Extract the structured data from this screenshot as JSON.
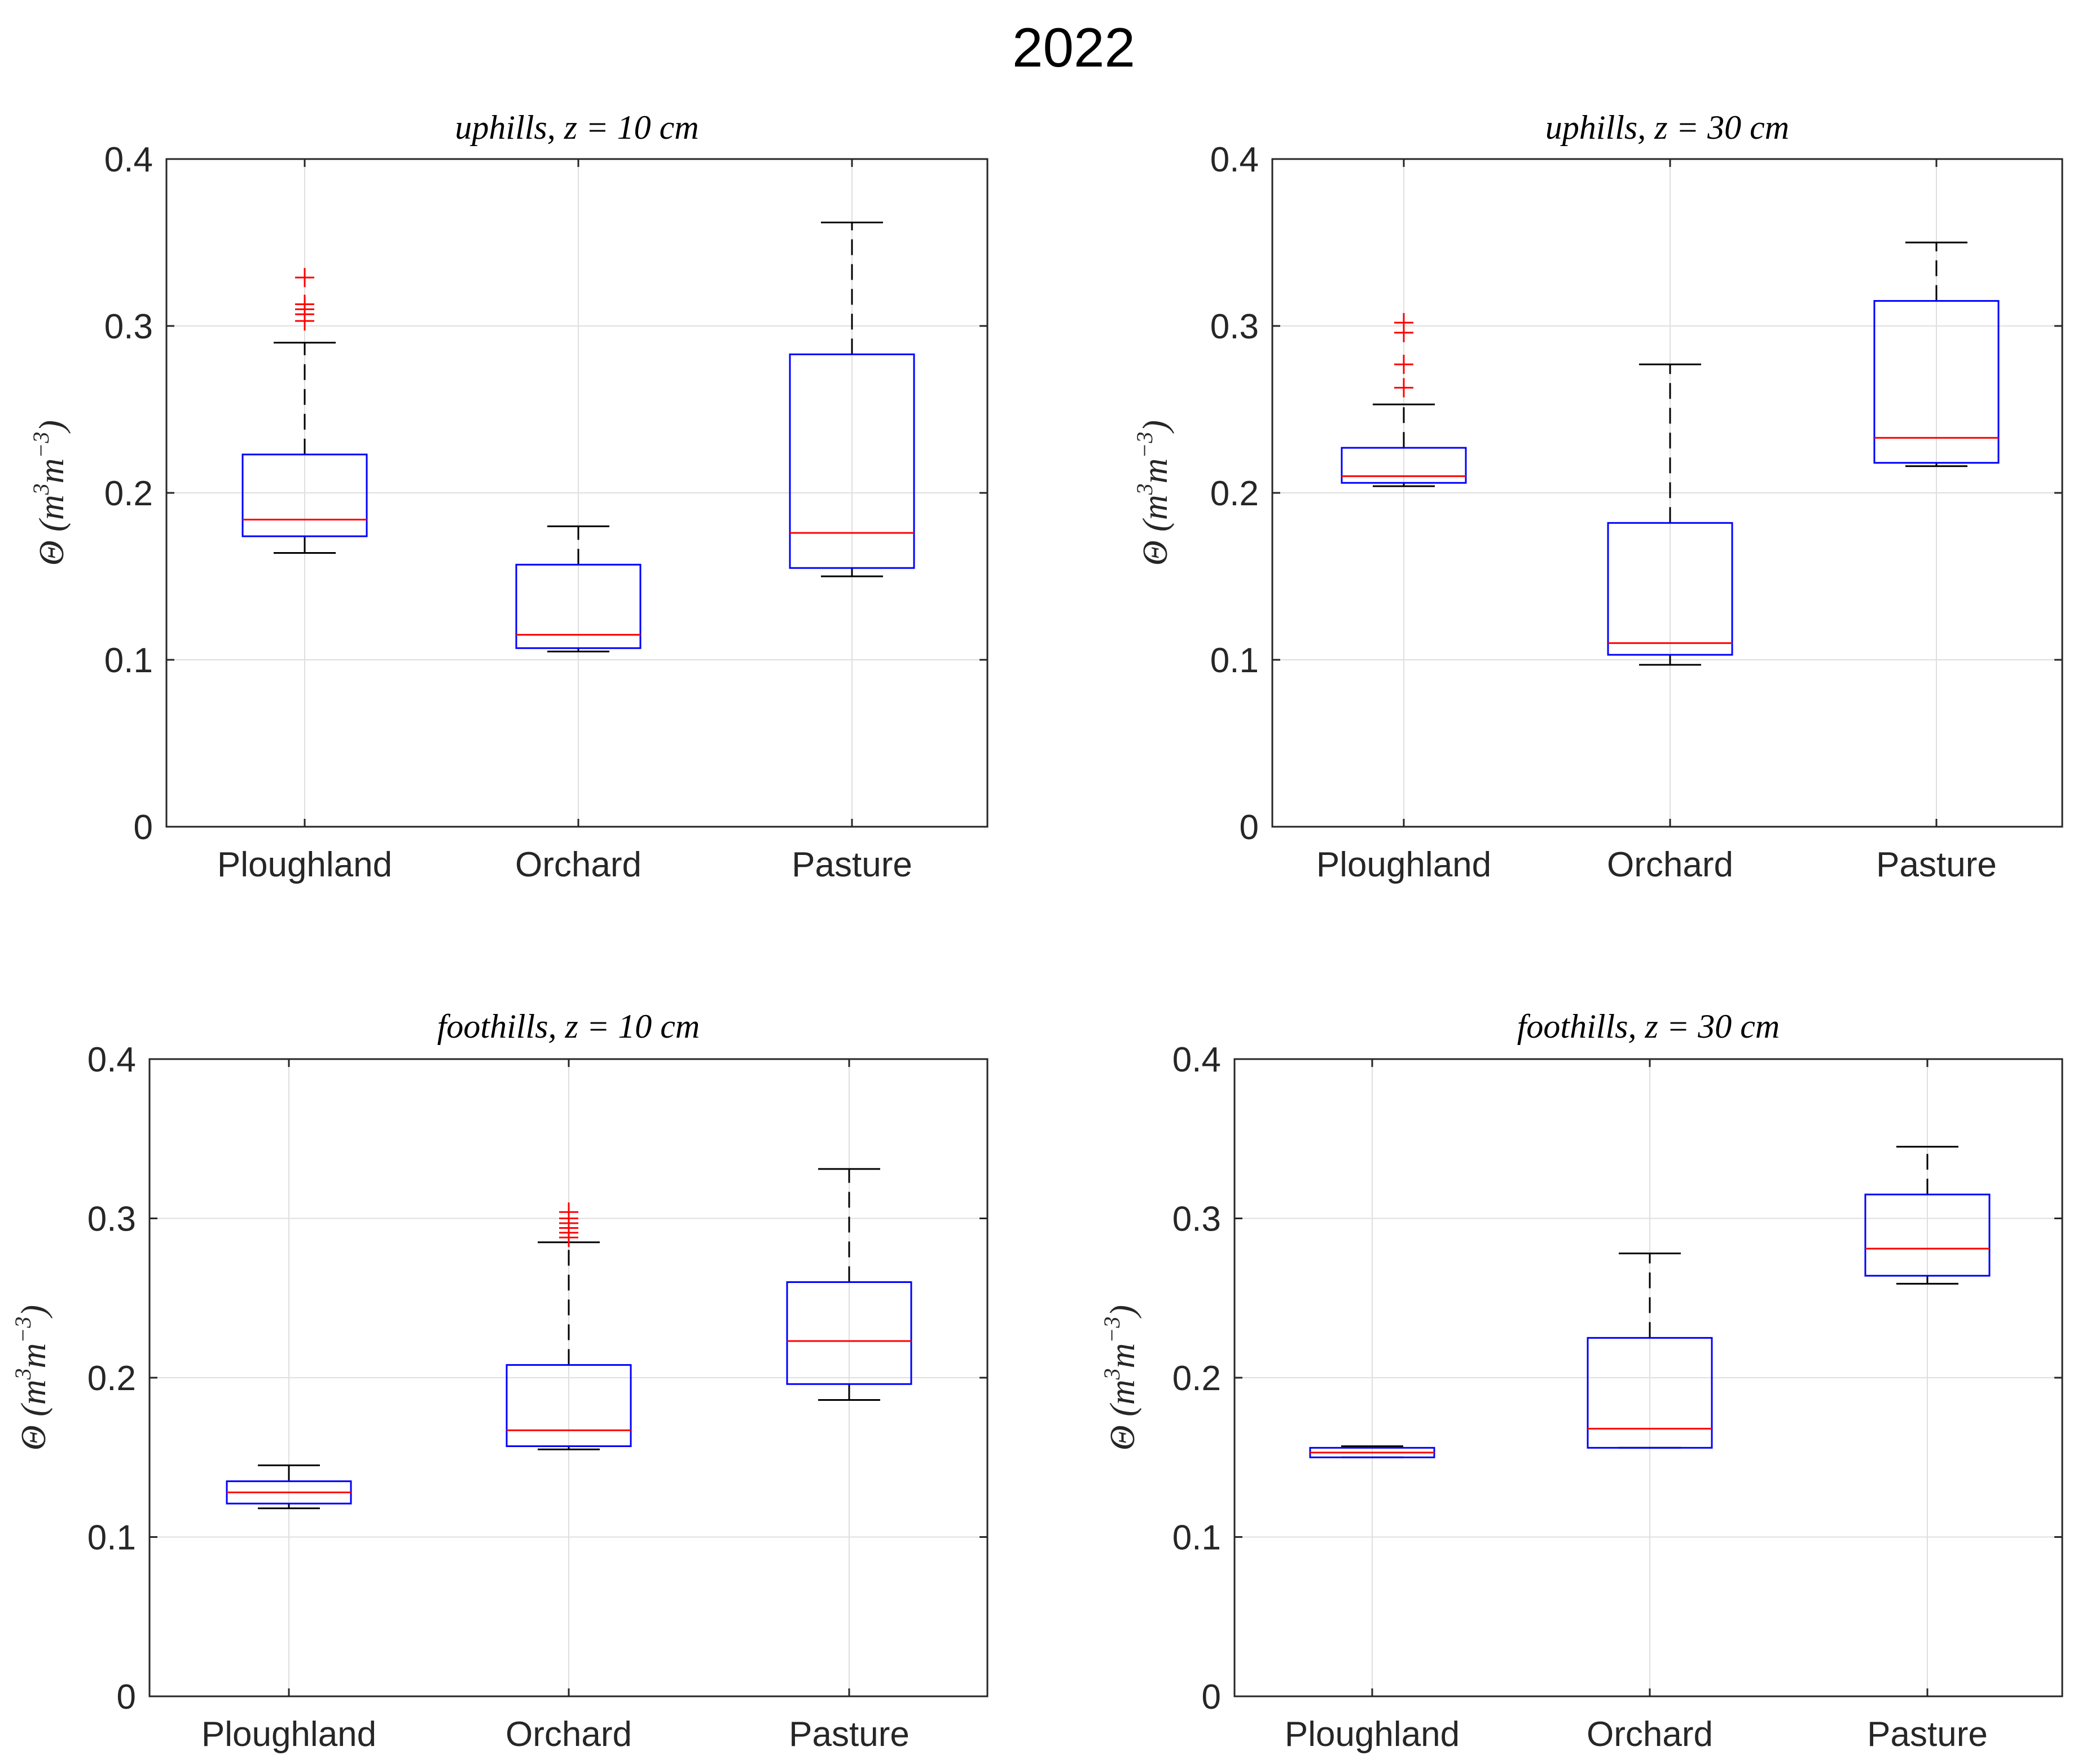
{
  "figure_title": "2022",
  "colors": {
    "box": "#0000ff",
    "median": "#ff0000",
    "whisker": "#000000",
    "outlier": "#ff0000",
    "grid": "#dfdfdf",
    "axis": "#262626"
  },
  "chart_data": [
    {
      "type": "box",
      "title": "uphills, z = 10 cm",
      "ylabel": "Θ (m3m−3)",
      "ylim": [
        0,
        0.4
      ],
      "yticks": [
        "0",
        "0.1",
        "0.2",
        "0.3",
        "0.4"
      ],
      "grid": true,
      "categories": [
        "Ploughland",
        "Orchard",
        "Pasture"
      ],
      "boxes": [
        {
          "min": 0.164,
          "q1": 0.174,
          "median": 0.184,
          "q3": 0.223,
          "max": 0.29,
          "outliers": [
            0.303,
            0.307,
            0.31,
            0.313,
            0.329
          ]
        },
        {
          "min": 0.105,
          "q1": 0.107,
          "median": 0.115,
          "q3": 0.157,
          "max": 0.18,
          "outliers": []
        },
        {
          "min": 0.15,
          "q1": 0.155,
          "median": 0.176,
          "q3": 0.283,
          "max": 0.362,
          "outliers": []
        }
      ]
    },
    {
      "type": "box",
      "title": "uphills, z = 30 cm",
      "ylabel": "Θ (m3m−3)",
      "ylim": [
        0,
        0.4
      ],
      "yticks": [
        "0",
        "0.1",
        "0.2",
        "0.3",
        "0.4"
      ],
      "grid": true,
      "categories": [
        "Ploughland",
        "Orchard",
        "Pasture"
      ],
      "boxes": [
        {
          "min": 0.204,
          "q1": 0.206,
          "median": 0.21,
          "q3": 0.227,
          "max": 0.253,
          "outliers": [
            0.263,
            0.277,
            0.296,
            0.302
          ]
        },
        {
          "min": 0.097,
          "q1": 0.103,
          "median": 0.11,
          "q3": 0.182,
          "max": 0.277,
          "outliers": []
        },
        {
          "min": 0.216,
          "q1": 0.218,
          "median": 0.233,
          "q3": 0.315,
          "max": 0.35,
          "outliers": []
        }
      ]
    },
    {
      "type": "box",
      "title": "foothills, z = 10 cm",
      "ylabel": "Θ (m3m−3)",
      "ylim": [
        0,
        0.4
      ],
      "yticks": [
        "0",
        "0.1",
        "0.2",
        "0.3",
        "0.4"
      ],
      "grid": true,
      "categories": [
        "Ploughland",
        "Orchard",
        "Pasture"
      ],
      "boxes": [
        {
          "min": 0.118,
          "q1": 0.121,
          "median": 0.128,
          "q3": 0.135,
          "max": 0.145,
          "outliers": []
        },
        {
          "min": 0.155,
          "q1": 0.157,
          "median": 0.167,
          "q3": 0.208,
          "max": 0.285,
          "outliers": [
            0.288,
            0.291,
            0.294,
            0.297,
            0.3,
            0.304
          ]
        },
        {
          "min": 0.186,
          "q1": 0.196,
          "median": 0.223,
          "q3": 0.26,
          "max": 0.331,
          "outliers": []
        }
      ]
    },
    {
      "type": "box",
      "title": "foothills, z = 30 cm",
      "ylabel": "Θ (m3m−3)",
      "ylim": [
        0,
        0.4
      ],
      "yticks": [
        "0",
        "0.1",
        "0.2",
        "0.3",
        "0.4"
      ],
      "grid": true,
      "categories": [
        "Ploughland",
        "Orchard",
        "Pasture"
      ],
      "boxes": [
        {
          "min": 0.15,
          "q1": 0.15,
          "median": 0.153,
          "q3": 0.156,
          "max": 0.157,
          "outliers": []
        },
        {
          "min": 0.156,
          "q1": 0.156,
          "median": 0.168,
          "q3": 0.225,
          "max": 0.278,
          "outliers": []
        },
        {
          "min": 0.259,
          "q1": 0.264,
          "median": 0.281,
          "q3": 0.315,
          "max": 0.345,
          "outliers": []
        }
      ]
    }
  ]
}
